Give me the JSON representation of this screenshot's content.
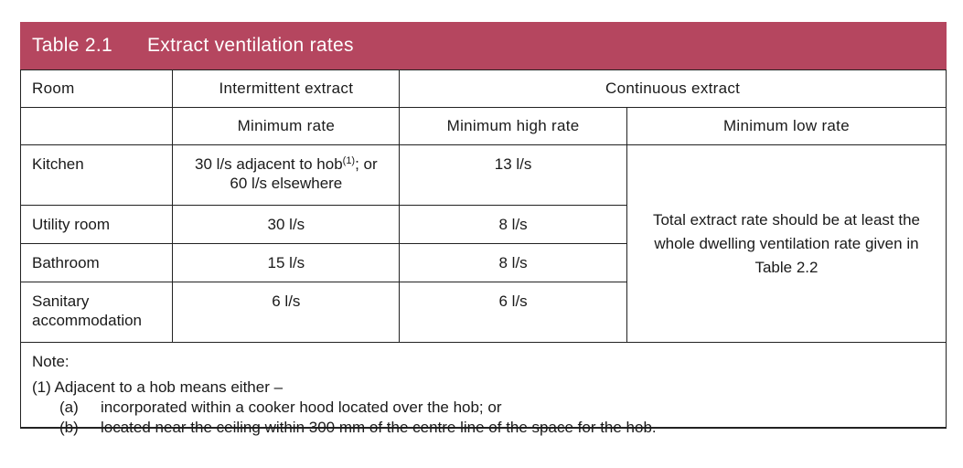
{
  "table": {
    "number": "Table 2.1",
    "title": "Extract ventilation rates",
    "headers": {
      "room": "Room",
      "intermittent": "Intermittent extract",
      "continuous": "Continuous extract",
      "min_rate": "Minimum rate",
      "min_high": "Minimum high rate",
      "min_low": "Minimum low rate"
    },
    "rows": [
      {
        "room": "Kitchen",
        "intermittent_a": "30 l/s adjacent to hob",
        "intermittent_sup": "(1)",
        "intermittent_b": "; or",
        "intermittent_c": "60 l/s elsewhere",
        "high": "13 l/s"
      },
      {
        "room": "Utility room",
        "intermittent": "30 l/s",
        "high": "8 l/s"
      },
      {
        "room": "Bathroom",
        "intermittent": "15 l/s",
        "high": "8 l/s"
      },
      {
        "room_line1": "Sanitary",
        "room_line2": "accommodation",
        "intermittent": "6 l/s",
        "high": "6 l/s"
      }
    ],
    "low_rate_text": "Total extract rate should be at least the whole dwelling ventilation rate given in Table 2.2"
  },
  "note": {
    "heading": "Note:",
    "item": "(1) Adjacent to a hob means either –",
    "subitems": [
      {
        "label": "(a)",
        "text": "incorporated within a cooker hood located over the hob; or"
      },
      {
        "label": "(b)",
        "text": "located near the ceiling within 300 mm of the centre line of the space for the hob."
      }
    ]
  },
  "colors": {
    "title_bar": "#b5465f"
  }
}
